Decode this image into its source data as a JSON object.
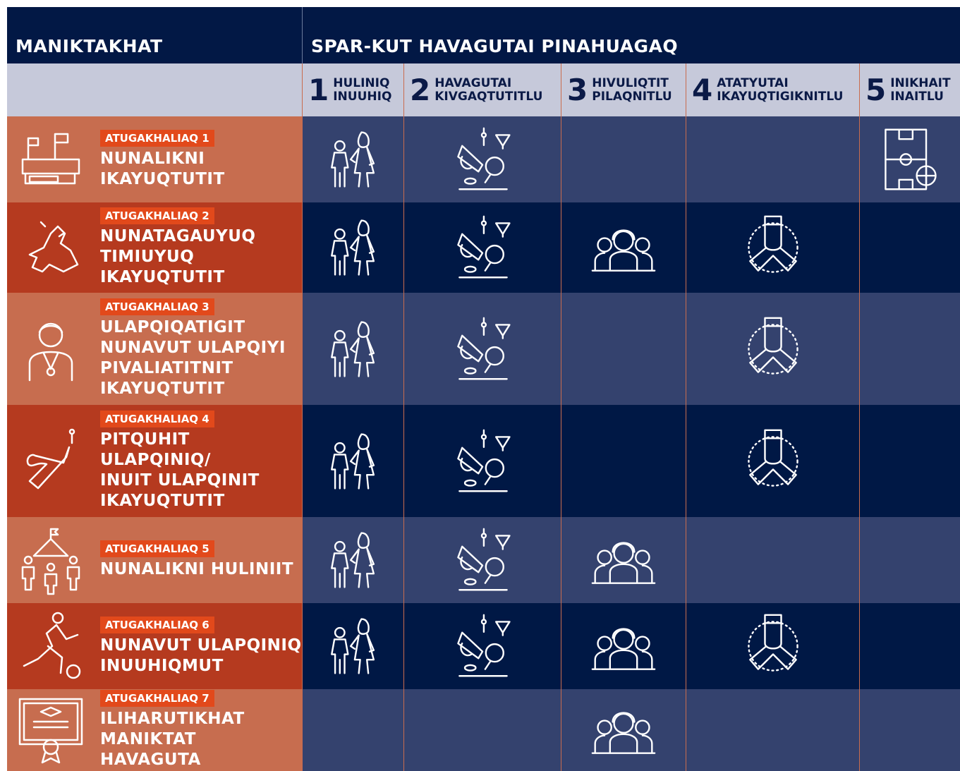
{
  "header": {
    "left_title": "MANIKTAKHAT",
    "right_title": "SPAR-KUT HAVAGUTAI PINAHUAGAQ"
  },
  "columns": [
    {
      "number": 1,
      "label_lines": [
        "HULINIQ",
        "INUUHIQ"
      ]
    },
    {
      "number": 2,
      "label_lines": [
        "HAVAGUTAI",
        "KIVGAQTUTITLU"
      ]
    },
    {
      "number": 3,
      "label_lines": [
        "HIVULIQTIT",
        "PILAQNITLU"
      ]
    },
    {
      "number": 4,
      "label_lines": [
        "ATATYUTAI",
        "IKAYUQTIGIKNITLU"
      ]
    },
    {
      "number": 5,
      "label_lines": [
        "INIKHAIT",
        "INAITLU"
      ]
    }
  ],
  "rows": [
    {
      "badge": "ATUGAKHALIAQ 1",
      "title_lines": [
        "NUNALIKNI",
        "IKAYUQTUTIT"
      ]
    },
    {
      "badge": "ATUGAKHALIAQ 2",
      "title_lines": [
        "NUNATAGAUYUQ",
        "TIMIUYUQ",
        "IKAYUQTUTIT"
      ]
    },
    {
      "badge": "ATUGAKHALIAQ 3",
      "title_lines": [
        "ULAPQIQATIGIT",
        "NUNAVUT ULAPQIYI",
        "PIVALIATITNIT",
        "IKAYUQTUTIT"
      ]
    },
    {
      "badge": "ATUGAKHALIAQ 4",
      "title_lines": [
        "PITQUHIT",
        "ULAPQINIQ/",
        "INUIT ULAPQINIT",
        "IKAYUQTUTIT"
      ]
    },
    {
      "badge": "ATUGAKHALIAQ 5",
      "title_lines": [
        "NUNALIKNI HULINIIT"
      ]
    },
    {
      "badge": "ATUGAKHALIAQ 6",
      "title_lines": [
        "NUNAVUT ULAPQINIQ",
        "INUUHIQMUT"
      ]
    },
    {
      "badge": "ATUGAKHALIAQ 7",
      "title_lines": [
        "ILIHARUTIKHAT",
        "MANIKTAT HAVAGUTA"
      ]
    }
  ]
}
